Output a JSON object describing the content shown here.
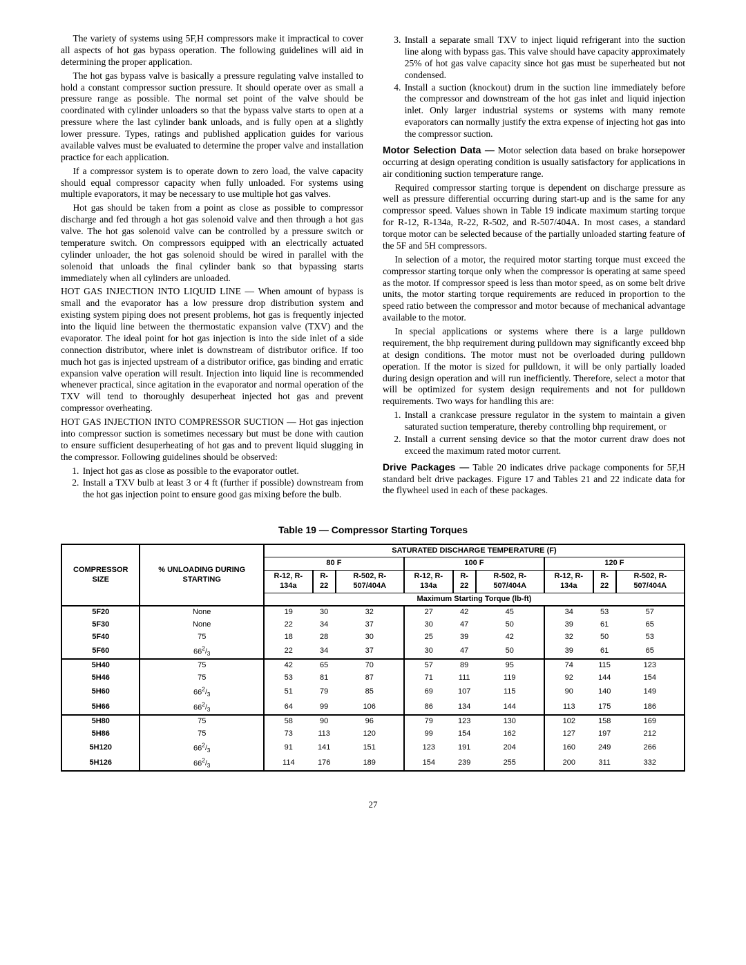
{
  "left": {
    "p1": "The variety of systems using 5F,H compressors make it impractical to cover all aspects of hot gas bypass operation. The following guidelines will aid in determining the proper application.",
    "p2": "The hot gas bypass valve is basically a pressure regulating valve installed to hold a constant compressor suction pressure. It should operate over as small a pressure range as possible. The normal set point of the valve should be coordinated with cylinder unloaders so that the bypass valve starts to open at a pressure where the last cylinder bank unloads, and is fully open at a slightly lower pressure. Types, ratings and published application guides for various available valves must be evaluated to determine the proper valve and installation practice for each application.",
    "p3": "If a compressor system is to operate down to zero load, the valve capacity should equal compressor capacity when fully unloaded. For systems using multiple evaporators, it may be necessary to use multiple hot gas valves.",
    "p4": "Hot gas should be taken from a point as close as possible to compressor discharge and fed through a hot gas solenoid valve and then through a hot gas valve. The hot gas solenoid valve can be controlled by a pressure switch or temperature switch. On compressors equipped with an electrically actuated cylinder unloader, the hot gas solenoid should be wired in parallel with the solenoid that unloads the final cylinder bank so that bypassing starts immediately when all cylinders are unloaded.",
    "h1": "HOT GAS INJECTION INTO LIQUID LINE — ",
    "p5": "When amount of bypass is small and the evaporator has a low pressure drop distribution system and existing system piping does not present problems, hot gas is frequently injected into the liquid line between the thermostatic expansion valve (TXV) and the evaporator. The ideal point for hot gas injection is into the side inlet of a side connection distributor, where inlet is downstream of distributor orifice. If too much hot gas is injected upstream of a distributor orifice, gas binding and erratic expansion valve operation will result. Injection into liquid line is recommended whenever practical, since agitation in the evaporator and normal operation of the TXV will tend to thoroughly desuperheat injected hot gas and prevent compressor overheating.",
    "h2": "HOT GAS INJECTION INTO COMPRESSOR SUCTION — ",
    "p6": "Hot gas injection into compressor suction is sometimes necessary but must be done with caution to ensure sufficient desuperheating of hot gas and to prevent liquid slugging in the compressor. Following guidelines should be observed:",
    "li1": "Inject hot gas as close as possible to the evaporator outlet.",
    "li2": "Install a TXV bulb at least 3 or 4 ft (further if possible) downstream from the hot gas injection point to ensure good gas mixing before the bulb."
  },
  "right": {
    "li3": "Install a separate small TXV to inject liquid refrigerant into the suction line along with bypass gas. This valve should have capacity approximately 25% of hot gas valve capacity since hot gas must be superheated but not condensed.",
    "li4": "Install a suction (knockout) drum in the suction line immediately before the compressor and downstream of the hot gas inlet and liquid injection inlet. Only larger industrial systems or systems with many remote evaporators can normally justify the extra expense of injecting hot gas into the compressor suction.",
    "s1": "Motor Selection Data —",
    "p1": " Motor selection data based on brake horsepower occurring at design operating condition is usually satisfactory for applications in air conditioning suction temperature range.",
    "p2": "Required compressor starting torque is dependent on discharge pressure as well as pressure differential occurring during start-up and is the same for any compressor speed. Values shown in Table 19 indicate maximum starting torque for R-12, R-134a, R-22, R-502, and R-507/404A. In most cases, a standard torque motor can be selected because of the partially unloaded starting feature of the 5F and 5H compressors.",
    "p3": "In selection of a motor, the required motor starting torque must exceed the compressor starting torque only when the compressor is operating at same speed as the motor. If compressor speed is less than motor speed, as on some belt drive units, the motor starting torque requirements are reduced in proportion to the speed ratio between the compressor and motor because of mechanical advantage available to the motor.",
    "p4": "In special applications or systems where there is a large pulldown requirement, the bhp requirement during pulldown may significantly exceed bhp at design conditions. The motor must not be overloaded during pulldown operation. If the motor is sized for pulldown, it will be only partially loaded during design operation and will run inefficiently. Therefore, select a motor that will be optimized for system design requirements and not for pulldown requirements. Two ways for handling this are:",
    "li5": "Install a crankcase pressure regulator in the system to maintain a given saturated suction temperature, thereby controlling bhp requirement, or",
    "li6": "Install a current sensing device so that the motor current draw does not exceed the maximum rated motor current.",
    "s2": "Drive Packages —",
    "p5": " Table 20 indicates drive package components for 5F,H standard belt drive packages. Figure 17 and Tables 21 and 22 indicate data for the flywheel used in each of these packages."
  },
  "table": {
    "title": "Table 19 — Compressor Starting Torques",
    "h_size": "COMPRESSOR SIZE",
    "h_unload": "% UNLOADING DURING STARTING",
    "h_sat": "SATURATED DISCHARGE TEMPERATURE (F)",
    "h_80": "80 F",
    "h_100": "100 F",
    "h_120": "120 F",
    "h_r12": "R-12, R-134a",
    "h_r22": "R-22",
    "h_r502": "R-502, R-507/404A",
    "h_max": "Maximum Starting Torque (lb-ft)",
    "rows": [
      {
        "size": "5F20",
        "unload": "None",
        "v": [
          "19",
          "30",
          "32",
          "27",
          "42",
          "45",
          "34",
          "53",
          "57"
        ]
      },
      {
        "size": "5F30",
        "unload": "None",
        "v": [
          "22",
          "34",
          "37",
          "30",
          "47",
          "50",
          "39",
          "61",
          "65"
        ]
      },
      {
        "size": "5F40",
        "unload": "75",
        "v": [
          "18",
          "28",
          "30",
          "25",
          "39",
          "42",
          "32",
          "50",
          "53"
        ]
      },
      {
        "size": "5F60",
        "unload": "66²/₃",
        "v": [
          "22",
          "34",
          "37",
          "30",
          "47",
          "50",
          "39",
          "61",
          "65"
        ]
      },
      {
        "size": "5H40",
        "unload": "75",
        "v": [
          "42",
          "65",
          "70",
          "57",
          "89",
          "95",
          "74",
          "115",
          "123"
        ]
      },
      {
        "size": "5H46",
        "unload": "75",
        "v": [
          "53",
          "81",
          "87",
          "71",
          "111",
          "119",
          "92",
          "144",
          "154"
        ]
      },
      {
        "size": "5H60",
        "unload": "66²/₃",
        "v": [
          "51",
          "79",
          "85",
          "69",
          "107",
          "115",
          "90",
          "140",
          "149"
        ]
      },
      {
        "size": "5H66",
        "unload": "66²/₃",
        "v": [
          "64",
          "99",
          "106",
          "86",
          "134",
          "144",
          "113",
          "175",
          "186"
        ]
      },
      {
        "size": "5H80",
        "unload": "75",
        "v": [
          "58",
          "90",
          "96",
          "79",
          "123",
          "130",
          "102",
          "158",
          "169"
        ]
      },
      {
        "size": "5H86",
        "unload": "75",
        "v": [
          "73",
          "113",
          "120",
          "99",
          "154",
          "162",
          "127",
          "197",
          "212"
        ]
      },
      {
        "size": "5H120",
        "unload": "66²/₃",
        "v": [
          "91",
          "141",
          "151",
          "123",
          "191",
          "204",
          "160",
          "249",
          "266"
        ]
      },
      {
        "size": "5H126",
        "unload": "66²/₃",
        "v": [
          "114",
          "176",
          "189",
          "154",
          "239",
          "255",
          "200",
          "311",
          "332"
        ]
      }
    ]
  },
  "pagenum": "27"
}
